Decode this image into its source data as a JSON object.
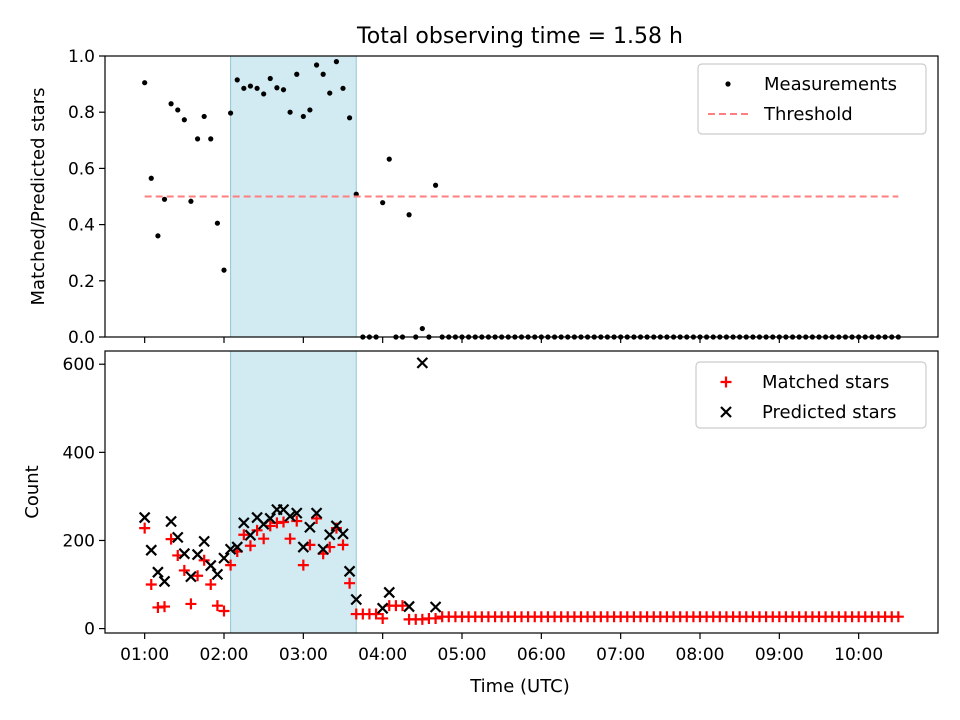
{
  "figure": {
    "title": "Total observing time = 1.58 h",
    "xlabel": "Time (UTC)",
    "highlight_color": "#add8e6",
    "highlight_range": [
      2.083,
      3.667
    ]
  },
  "chart_data": [
    {
      "type": "scatter",
      "ylabel": "Matched/Predicted stars",
      "ylim": [
        0,
        1.0
      ],
      "yticks": [
        0,
        0.2,
        0.4,
        0.6,
        0.8,
        1.0
      ],
      "ytick_labels": [
        "0.0",
        "0.2",
        "0.4",
        "0.6",
        "0.8",
        "1.0"
      ],
      "legend": {
        "placement": "top-right"
      },
      "series": [
        {
          "name": "Measurements",
          "color": "#000000",
          "marker": "dot",
          "points": [
            [
              1.0,
              0.905
            ],
            [
              1.083,
              0.565
            ],
            [
              1.167,
              0.36
            ],
            [
              1.25,
              0.49
            ],
            [
              1.333,
              0.83
            ],
            [
              1.417,
              0.808
            ],
            [
              1.5,
              0.773
            ],
            [
              1.583,
              0.483
            ],
            [
              1.667,
              0.705
            ],
            [
              1.75,
              0.785
            ],
            [
              1.833,
              0.705
            ],
            [
              1.917,
              0.405
            ],
            [
              2.0,
              0.238
            ],
            [
              2.083,
              0.797
            ],
            [
              2.167,
              0.915
            ],
            [
              2.25,
              0.885
            ],
            [
              2.333,
              0.893
            ],
            [
              2.417,
              0.885
            ],
            [
              2.5,
              0.865
            ],
            [
              2.583,
              0.92
            ],
            [
              2.667,
              0.887
            ],
            [
              2.75,
              0.88
            ],
            [
              2.833,
              0.8
            ],
            [
              2.917,
              0.935
            ],
            [
              3.0,
              0.785
            ],
            [
              3.083,
              0.808
            ],
            [
              3.167,
              0.968
            ],
            [
              3.25,
              0.935
            ],
            [
              3.333,
              0.868
            ],
            [
              3.417,
              0.98
            ],
            [
              3.5,
              0.885
            ],
            [
              3.583,
              0.78
            ],
            [
              3.667,
              0.508
            ],
            [
              3.75,
              0
            ],
            [
              3.833,
              0
            ],
            [
              3.917,
              0
            ],
            [
              4.0,
              0.478
            ],
            [
              4.083,
              0.633
            ],
            [
              4.167,
              0
            ],
            [
              4.25,
              0
            ],
            [
              4.333,
              0.435
            ],
            [
              4.417,
              0
            ],
            [
              4.5,
              0.03
            ],
            [
              4.583,
              0
            ],
            [
              4.667,
              0.54
            ],
            [
              4.75,
              0
            ],
            [
              4.833,
              0
            ],
            [
              4.917,
              0
            ],
            [
              5.0,
              0
            ],
            [
              5.083,
              0
            ],
            [
              5.167,
              0
            ],
            [
              5.25,
              0
            ],
            [
              5.333,
              0
            ],
            [
              5.417,
              0
            ],
            [
              5.5,
              0
            ],
            [
              5.583,
              0
            ],
            [
              5.667,
              0
            ],
            [
              5.75,
              0
            ],
            [
              5.833,
              0
            ],
            [
              5.917,
              0
            ],
            [
              6.0,
              0
            ],
            [
              6.083,
              0
            ],
            [
              6.167,
              0
            ],
            [
              6.25,
              0
            ],
            [
              6.333,
              0
            ],
            [
              6.417,
              0
            ],
            [
              6.5,
              0
            ],
            [
              6.583,
              0
            ],
            [
              6.667,
              0
            ],
            [
              6.75,
              0
            ],
            [
              6.833,
              0
            ],
            [
              6.917,
              0
            ],
            [
              7.0,
              0
            ],
            [
              7.083,
              0
            ],
            [
              7.167,
              0
            ],
            [
              7.25,
              0
            ],
            [
              7.333,
              0
            ],
            [
              7.417,
              0
            ],
            [
              7.5,
              0
            ],
            [
              7.583,
              0
            ],
            [
              7.667,
              0
            ],
            [
              7.75,
              0
            ],
            [
              7.833,
              0
            ],
            [
              7.917,
              0
            ],
            [
              8.0,
              0
            ],
            [
              8.083,
              0
            ],
            [
              8.167,
              0
            ],
            [
              8.25,
              0
            ],
            [
              8.333,
              0
            ],
            [
              8.417,
              0
            ],
            [
              8.5,
              0
            ],
            [
              8.583,
              0
            ],
            [
              8.667,
              0
            ],
            [
              8.75,
              0
            ],
            [
              8.833,
              0
            ],
            [
              8.917,
              0
            ],
            [
              9.0,
              0
            ],
            [
              9.083,
              0
            ],
            [
              9.167,
              0
            ],
            [
              9.25,
              0
            ],
            [
              9.333,
              0
            ],
            [
              9.417,
              0
            ],
            [
              9.5,
              0
            ],
            [
              9.583,
              0
            ],
            [
              9.667,
              0
            ],
            [
              9.75,
              0
            ],
            [
              9.833,
              0
            ],
            [
              9.917,
              0
            ],
            [
              10.0,
              0
            ],
            [
              10.083,
              0
            ],
            [
              10.167,
              0
            ],
            [
              10.25,
              0
            ],
            [
              10.333,
              0
            ],
            [
              10.417,
              0
            ],
            [
              10.5,
              0
            ]
          ]
        },
        {
          "name": "Threshold",
          "color": "#ff7f7f",
          "line_style": "dashed",
          "points": [
            [
              1.0,
              0.5
            ],
            [
              10.5,
              0.5
            ]
          ]
        }
      ]
    },
    {
      "type": "scatter",
      "ylabel": "Count",
      "ylim": [
        -10,
        630
      ],
      "yticks": [
        0,
        200,
        400,
        600
      ],
      "ytick_labels": [
        "0",
        "200",
        "400",
        "600"
      ],
      "legend": {
        "placement": "top-right"
      },
      "series": [
        {
          "name": "Matched stars",
          "color": "#ff0000",
          "marker": "plus",
          "points": [
            [
              1.0,
              228
            ],
            [
              1.083,
              100
            ],
            [
              1.167,
              48
            ],
            [
              1.25,
              50
            ],
            [
              1.333,
              203
            ],
            [
              1.417,
              166
            ],
            [
              1.5,
              132
            ],
            [
              1.583,
              56
            ],
            [
              1.667,
              120
            ],
            [
              1.75,
              155
            ],
            [
              1.833,
              100
            ],
            [
              1.917,
              52
            ],
            [
              2.0,
              40
            ],
            [
              2.083,
              144
            ],
            [
              2.167,
              175
            ],
            [
              2.25,
              213
            ],
            [
              2.333,
              188
            ],
            [
              2.417,
              223
            ],
            [
              2.5,
              204
            ],
            [
              2.583,
              233
            ],
            [
              2.667,
              240
            ],
            [
              2.75,
              242
            ],
            [
              2.833,
              204
            ],
            [
              2.917,
              244
            ],
            [
              3.0,
              144
            ],
            [
              3.083,
              190
            ],
            [
              3.167,
              250
            ],
            [
              3.25,
              170
            ],
            [
              3.333,
              185
            ],
            [
              3.417,
              228
            ],
            [
              3.5,
              190
            ],
            [
              3.583,
              103
            ],
            [
              3.667,
              33
            ],
            [
              3.75,
              33
            ],
            [
              3.833,
              33
            ],
            [
              3.917,
              33
            ],
            [
              4.0,
              23
            ],
            [
              4.083,
              52
            ],
            [
              4.167,
              52
            ],
            [
              4.25,
              52
            ],
            [
              4.333,
              21
            ],
            [
              4.417,
              21
            ],
            [
              4.5,
              21
            ],
            [
              4.583,
              23
            ],
            [
              4.667,
              23
            ],
            [
              4.75,
              27
            ],
            [
              4.833,
              27
            ],
            [
              4.917,
              27
            ],
            [
              5.0,
              27
            ],
            [
              5.083,
              27
            ],
            [
              5.167,
              27
            ],
            [
              5.25,
              27
            ],
            [
              5.333,
              27
            ],
            [
              5.417,
              27
            ],
            [
              5.5,
              27
            ],
            [
              5.583,
              27
            ],
            [
              5.667,
              27
            ],
            [
              5.75,
              27
            ],
            [
              5.833,
              27
            ],
            [
              5.917,
              27
            ],
            [
              6.0,
              27
            ],
            [
              6.083,
              27
            ],
            [
              6.167,
              27
            ],
            [
              6.25,
              27
            ],
            [
              6.333,
              27
            ],
            [
              6.417,
              27
            ],
            [
              6.5,
              27
            ],
            [
              6.583,
              27
            ],
            [
              6.667,
              27
            ],
            [
              6.75,
              27
            ],
            [
              6.833,
              27
            ],
            [
              6.917,
              27
            ],
            [
              7.0,
              27
            ],
            [
              7.083,
              27
            ],
            [
              7.167,
              27
            ],
            [
              7.25,
              27
            ],
            [
              7.333,
              27
            ],
            [
              7.417,
              27
            ],
            [
              7.5,
              27
            ],
            [
              7.583,
              27
            ],
            [
              7.667,
              27
            ],
            [
              7.75,
              27
            ],
            [
              7.833,
              27
            ],
            [
              7.917,
              27
            ],
            [
              8.0,
              27
            ],
            [
              8.083,
              27
            ],
            [
              8.167,
              27
            ],
            [
              8.25,
              27
            ],
            [
              8.333,
              27
            ],
            [
              8.417,
              27
            ],
            [
              8.5,
              27
            ],
            [
              8.583,
              27
            ],
            [
              8.667,
              27
            ],
            [
              8.75,
              27
            ],
            [
              8.833,
              27
            ],
            [
              8.917,
              27
            ],
            [
              9.0,
              27
            ],
            [
              9.083,
              27
            ],
            [
              9.167,
              27
            ],
            [
              9.25,
              27
            ],
            [
              9.333,
              27
            ],
            [
              9.417,
              27
            ],
            [
              9.5,
              27
            ],
            [
              9.583,
              27
            ],
            [
              9.667,
              27
            ],
            [
              9.75,
              27
            ],
            [
              9.833,
              27
            ],
            [
              9.917,
              27
            ],
            [
              10.0,
              27
            ],
            [
              10.083,
              27
            ],
            [
              10.167,
              27
            ],
            [
              10.25,
              27
            ],
            [
              10.333,
              27
            ],
            [
              10.417,
              27
            ],
            [
              10.5,
              27
            ]
          ]
        },
        {
          "name": "Predicted stars",
          "color": "#000000",
          "marker": "x",
          "points": [
            [
              1.0,
              252
            ],
            [
              1.083,
              178
            ],
            [
              1.167,
              128
            ],
            [
              1.25,
              107
            ],
            [
              1.333,
              243
            ],
            [
              1.417,
              207
            ],
            [
              1.5,
              170
            ],
            [
              1.583,
              118
            ],
            [
              1.667,
              168
            ],
            [
              1.75,
              198
            ],
            [
              1.833,
              143
            ],
            [
              1.917,
              123
            ],
            [
              2.0,
              160
            ],
            [
              2.083,
              180
            ],
            [
              2.167,
              185
            ],
            [
              2.25,
              240
            ],
            [
              2.333,
              212
            ],
            [
              2.417,
              252
            ],
            [
              2.5,
              237
            ],
            [
              2.583,
              250
            ],
            [
              2.667,
              270
            ],
            [
              2.75,
              270
            ],
            [
              2.833,
              255
            ],
            [
              2.917,
              262
            ],
            [
              3.0,
              185
            ],
            [
              3.083,
              230
            ],
            [
              3.167,
              262
            ],
            [
              3.25,
              180
            ],
            [
              3.333,
              213
            ],
            [
              3.417,
              233
            ],
            [
              3.5,
              215
            ],
            [
              3.583,
              130
            ],
            [
              3.667,
              66
            ],
            [
              4.0,
              46
            ],
            [
              4.083,
              82
            ],
            [
              4.333,
              50
            ],
            [
              4.5,
              603
            ],
            [
              4.667,
              49
            ]
          ]
        }
      ]
    }
  ],
  "xaxis": {
    "xlim": [
      0.5,
      11.0
    ],
    "ticks": [
      1,
      2,
      3,
      4,
      5,
      6,
      7,
      8,
      9,
      10
    ],
    "tick_labels": [
      "01:00",
      "02:00",
      "03:00",
      "04:00",
      "05:00",
      "06:00",
      "07:00",
      "08:00",
      "09:00",
      "10:00"
    ]
  }
}
